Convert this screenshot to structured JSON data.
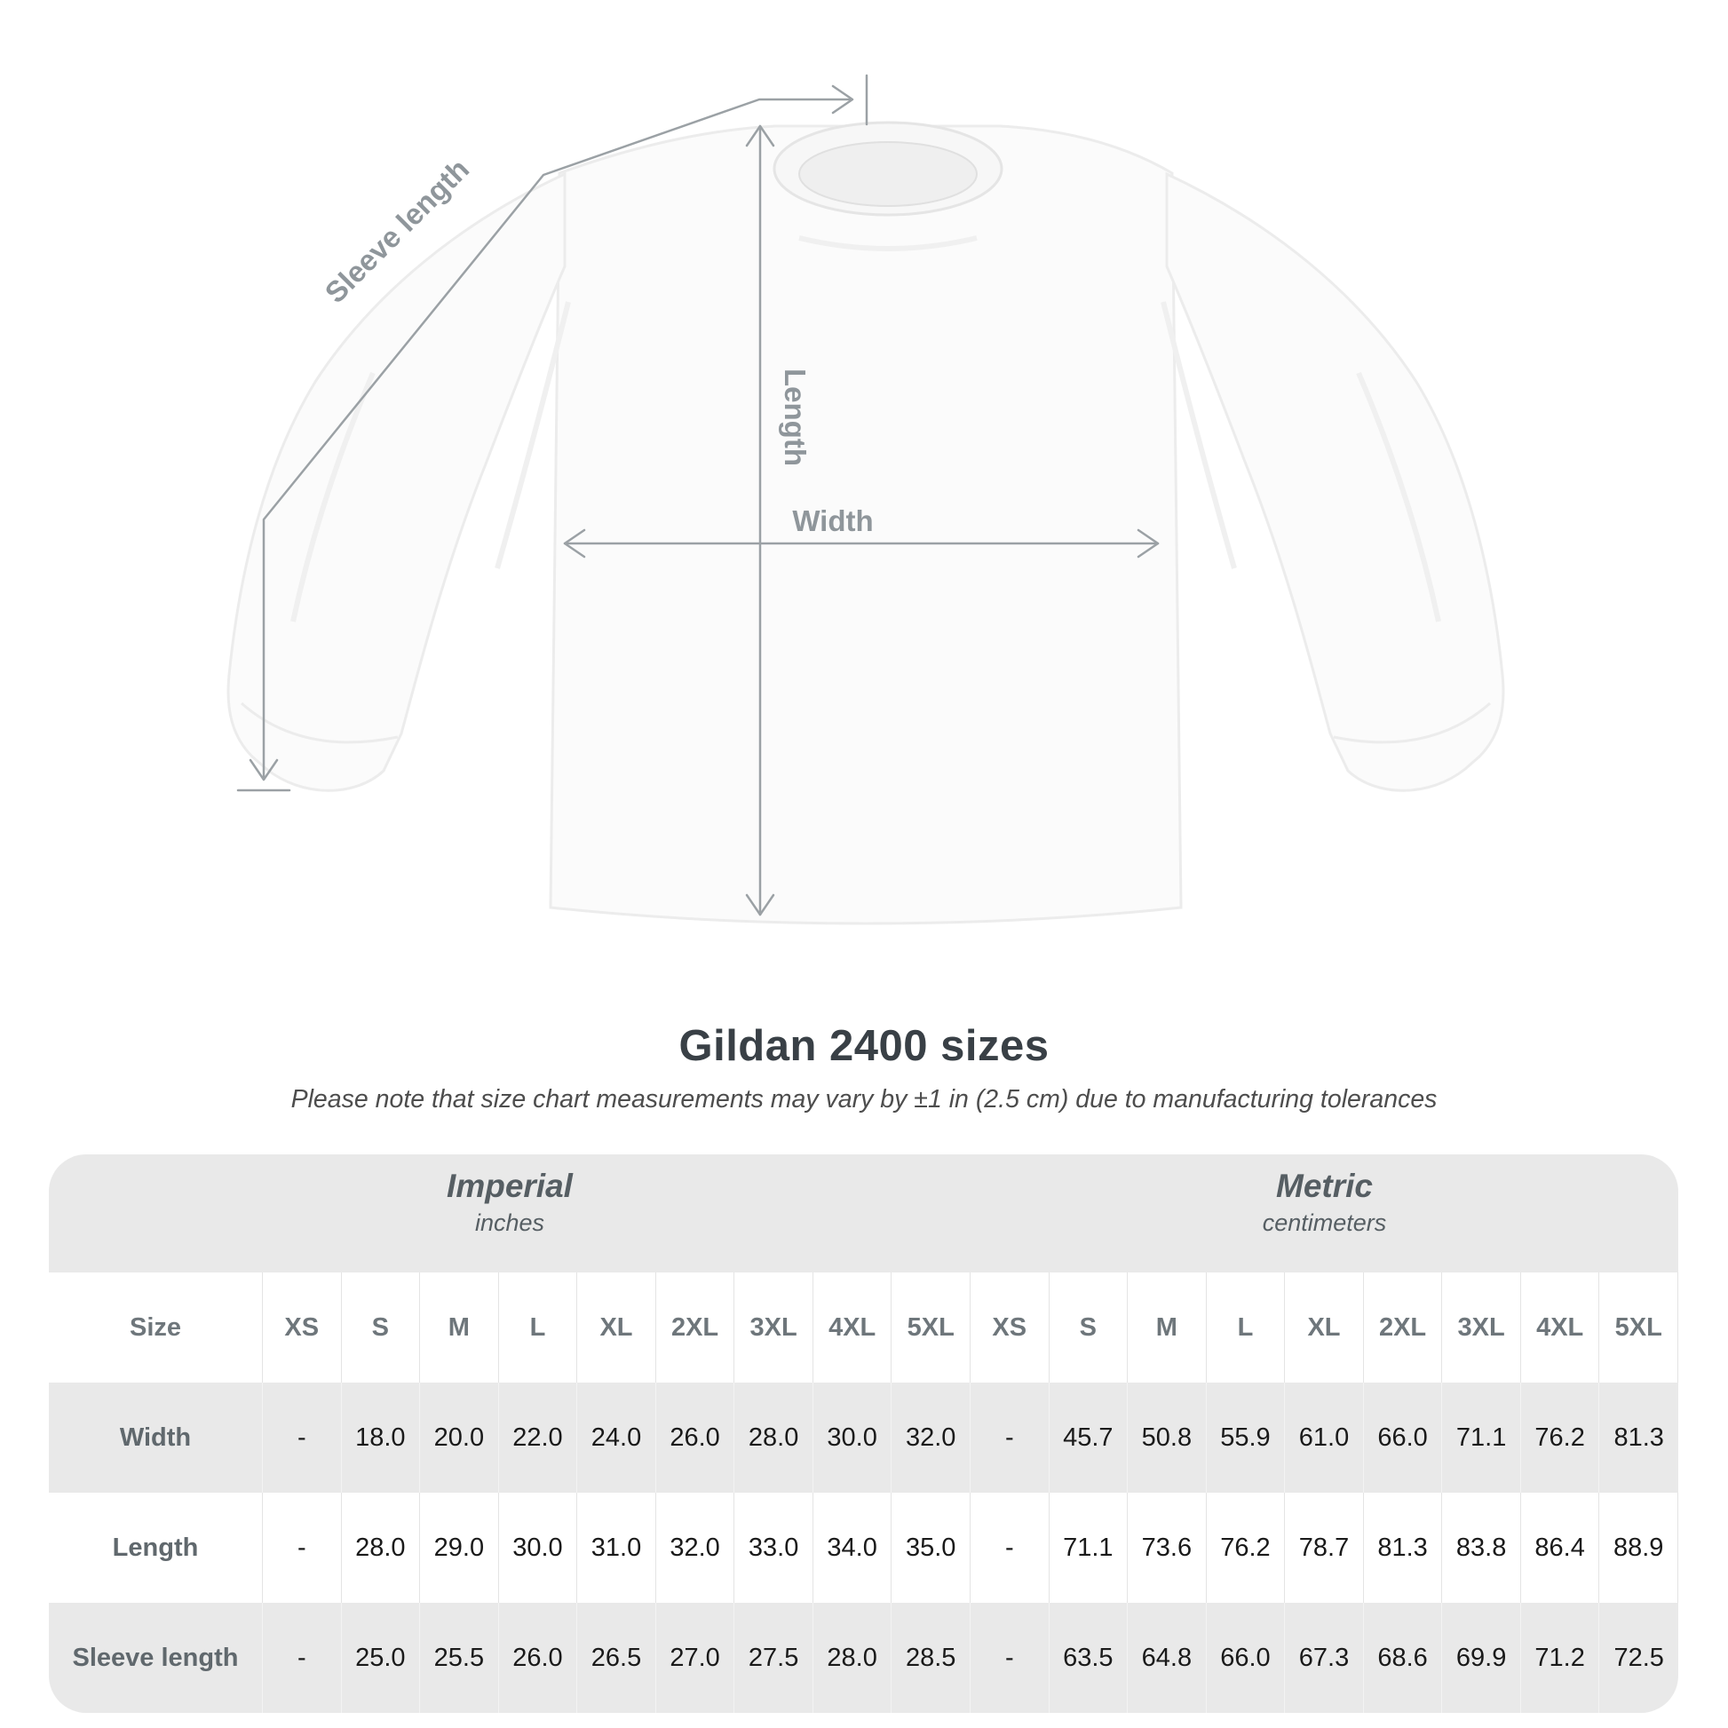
{
  "diagram": {
    "sleeve_length_label": "Sleeve length",
    "length_label": "Length",
    "width_label": "Width"
  },
  "title": "Gildan 2400 sizes",
  "subtitle": "Please note that size chart measurements may vary by ±1 in (2.5 cm) due to manufacturing tolerances",
  "chart_data": {
    "type": "table",
    "title": "Gildan 2400 sizes",
    "unit_groups": [
      {
        "name": "Imperial",
        "unit": "inches"
      },
      {
        "name": "Metric",
        "unit": "centimeters"
      }
    ],
    "size_header": "Size",
    "sizes": [
      "XS",
      "S",
      "M",
      "L",
      "XL",
      "2XL",
      "3XL",
      "4XL",
      "5XL"
    ],
    "rows": [
      {
        "label": "Width",
        "imperial": [
          "-",
          "18.0",
          "20.0",
          "22.0",
          "24.0",
          "26.0",
          "28.0",
          "30.0",
          "32.0"
        ],
        "metric": [
          "-",
          "45.7",
          "50.8",
          "55.9",
          "61.0",
          "66.0",
          "71.1",
          "76.2",
          "81.3"
        ]
      },
      {
        "label": "Length",
        "imperial": [
          "-",
          "28.0",
          "29.0",
          "30.0",
          "31.0",
          "32.0",
          "33.0",
          "34.0",
          "35.0"
        ],
        "metric": [
          "-",
          "71.1",
          "73.6",
          "76.2",
          "78.7",
          "81.3",
          "83.8",
          "86.4",
          "88.9"
        ]
      },
      {
        "label": "Sleeve length",
        "imperial": [
          "-",
          "25.0",
          "25.5",
          "26.0",
          "26.5",
          "27.0",
          "27.5",
          "28.0",
          "28.5"
        ],
        "metric": [
          "-",
          "63.5",
          "64.8",
          "66.0",
          "67.3",
          "68.6",
          "69.9",
          "71.2",
          "72.5"
        ]
      }
    ]
  },
  "colors": {
    "table_band_gray": "#e9e9e9",
    "measure_line_gray": "#9ba1a5",
    "measure_label_gray": "#8f969b",
    "title_text": "#394046",
    "header_text": "#6e767b",
    "value_text": "#1a1a1a"
  }
}
